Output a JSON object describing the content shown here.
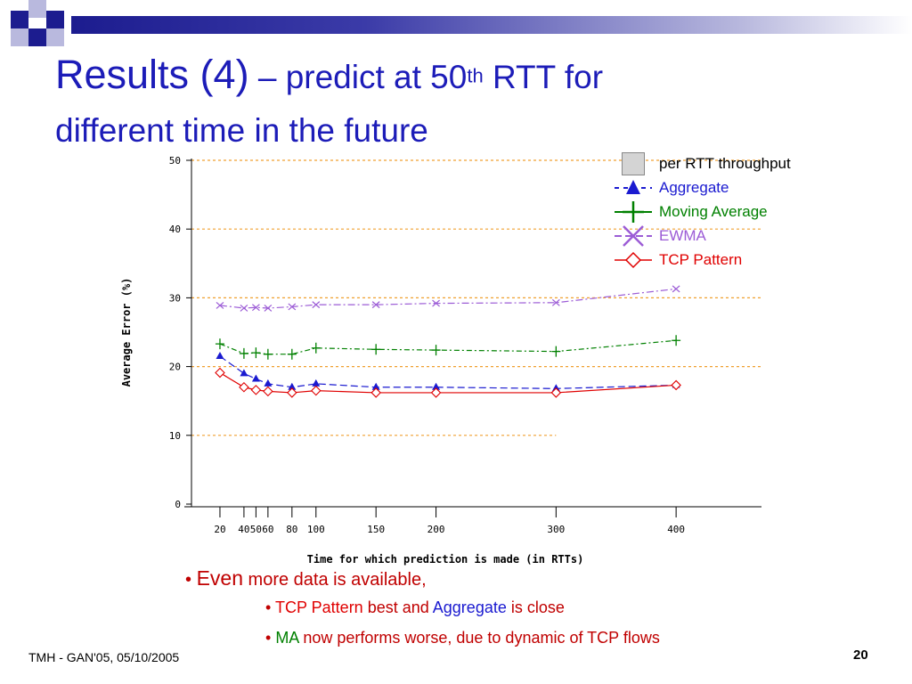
{
  "slide": {
    "title_main": "Results (4)",
    "title_dash": " – predict at 50",
    "title_sup": "th",
    "title_rest": " RTT for",
    "title_line2": "different time in the future",
    "footer_left": "TMH - GAN'05, 05/10/2005",
    "page_number": "20"
  },
  "legend": [
    {
      "label": "per RTT throughput",
      "color": "#000000"
    },
    {
      "label": "Aggregate",
      "color": "#1a1ad0"
    },
    {
      "label": "Moving Average",
      "color": "#008000"
    },
    {
      "label": "EWMA",
      "color": "#9c5cd6"
    },
    {
      "label": "TCP Pattern",
      "color": "#e00000"
    }
  ],
  "bullets": {
    "b1_highlight": "Even",
    "b1_rest": " more data is available,",
    "b2_tcp": "TCP Pattern",
    "b2_mid": " best and ",
    "b2_agg": "Aggregate",
    "b2_end": " is close",
    "b3_ma": "MA",
    "b3_rest": " now performs worse, due to dynamic of TCP flows"
  },
  "chart_data": {
    "type": "line",
    "xlabel": "Time for which prediction is made (in RTTs)",
    "ylabel": "Average Error (%)",
    "ylim": [
      0,
      50
    ],
    "y_ticks": [
      0,
      10,
      20,
      30,
      40,
      50
    ],
    "x_ticks": [
      "20",
      "40",
      "50",
      "60",
      "80",
      "100",
      "150",
      "200",
      "300",
      "400"
    ],
    "grid": "horizontal dotted orange",
    "series": [
      {
        "name": "Aggregate",
        "color": "#1a1ad0",
        "marker": "triangle",
        "x": [
          20,
          40,
          50,
          60,
          80,
          100,
          150,
          200,
          300,
          400
        ],
        "y": [
          21.5,
          19.0,
          18.2,
          17.5,
          17.0,
          17.5,
          17.0,
          17.0,
          16.8,
          17.3
        ]
      },
      {
        "name": "Moving Average",
        "color": "#008000",
        "marker": "plus",
        "x": [
          20,
          40,
          50,
          60,
          80,
          100,
          150,
          200,
          300,
          400
        ],
        "y": [
          23.3,
          21.9,
          22.0,
          21.8,
          21.8,
          22.7,
          22.5,
          22.4,
          22.2,
          23.8
        ]
      },
      {
        "name": "EWMA",
        "color": "#9c5cd6",
        "marker": "x",
        "x": [
          20,
          40,
          50,
          60,
          80,
          100,
          150,
          200,
          300,
          400
        ],
        "y": [
          28.9,
          28.5,
          28.6,
          28.5,
          28.7,
          29.0,
          29.0,
          29.2,
          29.3,
          31.3
        ]
      },
      {
        "name": "TCP Pattern",
        "color": "#e00000",
        "marker": "diamond",
        "x": [
          20,
          40,
          50,
          60,
          80,
          100,
          150,
          200,
          300,
          400
        ],
        "y": [
          19.1,
          17.0,
          16.6,
          16.4,
          16.2,
          16.5,
          16.2,
          16.2,
          16.2,
          17.3
        ]
      }
    ]
  }
}
